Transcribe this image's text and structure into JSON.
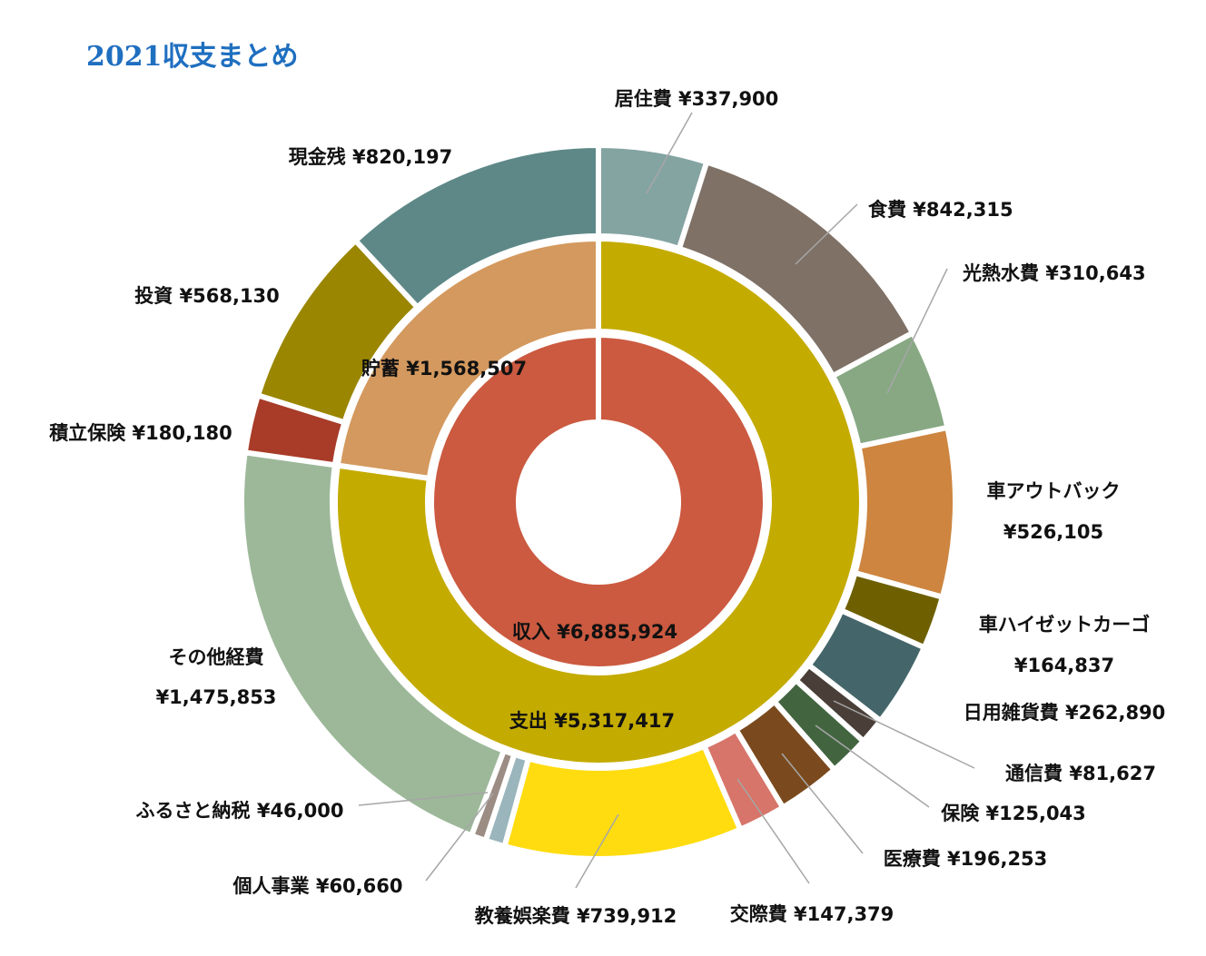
{
  "chart_data": {
    "type": "sunburst",
    "title": "2021収支まとめ",
    "levels": [
      {
        "name": "inner",
        "slices": [
          {
            "label": "収入 ¥6,885,924",
            "value": 6885924,
            "color": "#cb5a40"
          }
        ]
      },
      {
        "name": "middle",
        "slices": [
          {
            "label": "支出 ¥5,317,417",
            "value": 5317417,
            "color": "#c4ab00"
          },
          {
            "label": "貯蓄 ¥1,568,507",
            "value": 1568507,
            "color": "#d4995e"
          }
        ]
      },
      {
        "name": "outer",
        "slices": [
          {
            "label": "居住費 ¥337,900",
            "value": 337900,
            "color": "#84a4a2"
          },
          {
            "label": "食費 ¥842,315",
            "value": 842315,
            "color": "#7f7166"
          },
          {
            "label": "光熱水費 ¥310,643",
            "value": 310643,
            "color": "#87a883"
          },
          {
            "label_lines": [
              "車アウトバック",
              "¥526,105"
            ],
            "value": 526105,
            "color": "#cd8540"
          },
          {
            "label_lines": [
              "車ハイゼットカーゴ",
              "¥164,837"
            ],
            "value": 164837,
            "color": "#6e6000"
          },
          {
            "label": "日用雑貨費 ¥262,890",
            "value": 262890,
            "color": "#44666a"
          },
          {
            "label": "通信費 ¥81,627",
            "value": 81627,
            "color": "#4a3f38"
          },
          {
            "label": "保険 ¥125,043",
            "value": 125043,
            "color": "#426540"
          },
          {
            "label": "医療費 ¥196,253",
            "value": 196253,
            "color": "#7a4a1e"
          },
          {
            "label": "交際費 ¥147,379",
            "value": 147379,
            "color": "#d7756a"
          },
          {
            "label": "教養娯楽費 ¥739,912",
            "value": 739912,
            "color": "#ffdc10"
          },
          {
            "label": "個人事業 ¥60,660",
            "value": 60660,
            "color": "#9ab5bc"
          },
          {
            "label": "ふるさと納税 ¥46,000",
            "value": 46000,
            "color": "#9c8d84"
          },
          {
            "label_lines": [
              "その他経費",
              "¥1,475,853"
            ],
            "value": 1475853,
            "color": "#9cb899"
          },
          {
            "label": "積立保険 ¥180,180",
            "value": 180180,
            "color": "#a83c28"
          },
          {
            "label": "投資 ¥568,130",
            "value": 568130,
            "color": "#9a8600"
          },
          {
            "label": "現金残 ¥820,197",
            "value": 820197,
            "color": "#5e8888"
          }
        ]
      }
    ]
  }
}
